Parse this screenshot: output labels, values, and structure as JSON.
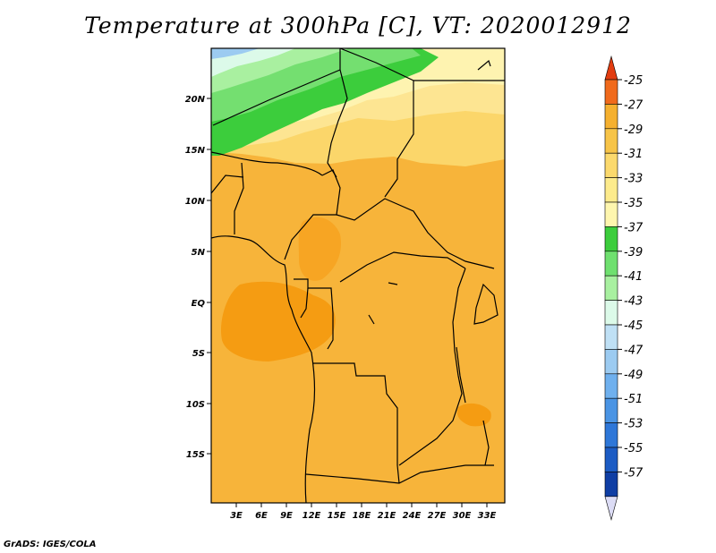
{
  "title": "Temperature at 300hPa [C], VT: 2020012912",
  "footer": "GrADS: IGES/COLA",
  "map": {
    "lat_labels": [
      "20N",
      "15N",
      "10N",
      "5N",
      "EQ",
      "5S",
      "10S",
      "15S"
    ],
    "lon_labels": [
      "3E",
      "6E",
      "9E",
      "12E",
      "15E",
      "18E",
      "21E",
      "24E",
      "27E",
      "30E",
      "33E"
    ],
    "lon_range": [
      0,
      35
    ],
    "lat_range": [
      -20,
      25
    ]
  },
  "colorbar": {
    "labels": [
      "-25",
      "-27",
      "-29",
      "-31",
      "-33",
      "-35",
      "-37",
      "-39",
      "-41",
      "-43",
      "-45",
      "-47",
      "-49",
      "-51",
      "-53",
      "-55",
      "-57"
    ],
    "colors": [
      "#f5b02f",
      "#f7c448",
      "#fbd96d",
      "#fdeb8c",
      "#fef6ae",
      "#3ccd3c",
      "#6fe06f",
      "#a8f0a0",
      "#dcfae9",
      "#bfe0f5",
      "#9ccbf1",
      "#6fb0ee",
      "#4a94e4",
      "#2e77d8",
      "#1c5cc4",
      "#0f3ea4",
      "#0a1a6e"
    ],
    "top_cap_color": "#e23c10",
    "top_band_color": "#f06a1c",
    "bottom_cap_color": "#dcdcf5"
  }
}
